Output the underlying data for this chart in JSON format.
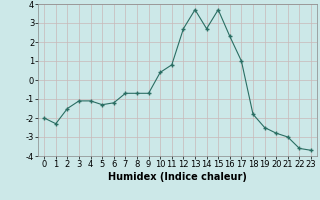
{
  "x": [
    0,
    1,
    2,
    3,
    4,
    5,
    6,
    7,
    8,
    9,
    10,
    11,
    12,
    13,
    14,
    15,
    16,
    17,
    18,
    19,
    20,
    21,
    22,
    23
  ],
  "y": [
    -2.0,
    -2.3,
    -1.5,
    -1.1,
    -1.1,
    -1.3,
    -1.2,
    -0.7,
    -0.7,
    -0.7,
    0.4,
    0.8,
    2.7,
    3.7,
    2.7,
    3.7,
    2.3,
    1.0,
    -1.8,
    -2.5,
    -2.8,
    -3.0,
    -3.6,
    -3.7
  ],
  "line_color": "#2a6e63",
  "marker": "+",
  "bg_color": "#cce8e8",
  "grid_color": "#c8b8b8",
  "xlabel": "Humidex (Indice chaleur)",
  "ylim": [
    -4,
    4
  ],
  "xlim_min": -0.5,
  "xlim_max": 23.5,
  "yticks": [
    -4,
    -3,
    -2,
    -1,
    0,
    1,
    2,
    3,
    4
  ],
  "xticks": [
    0,
    1,
    2,
    3,
    4,
    5,
    6,
    7,
    8,
    9,
    10,
    11,
    12,
    13,
    14,
    15,
    16,
    17,
    18,
    19,
    20,
    21,
    22,
    23
  ],
  "tick_fontsize": 6,
  "label_fontsize": 7,
  "linewidth": 0.8,
  "markersize": 3
}
